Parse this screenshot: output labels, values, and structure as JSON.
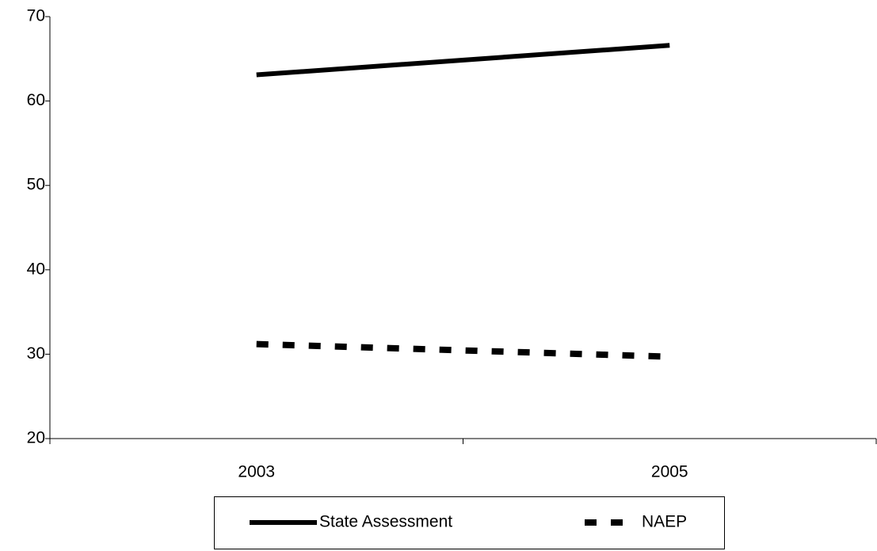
{
  "chart_data": {
    "type": "line",
    "categories": [
      "2003",
      "2005"
    ],
    "series": [
      {
        "name": "State Assessment",
        "color": "#000000",
        "style": "solid",
        "values": [
          63.1,
          66.6
        ]
      },
      {
        "name": "NAEP",
        "color": "#000000",
        "style": "dashed",
        "values": [
          31.2,
          29.7
        ]
      }
    ],
    "ylim": [
      20,
      70
    ],
    "yticks": [
      20,
      30,
      40,
      50,
      60,
      70
    ],
    "grid": false,
    "legend": "bottom"
  }
}
